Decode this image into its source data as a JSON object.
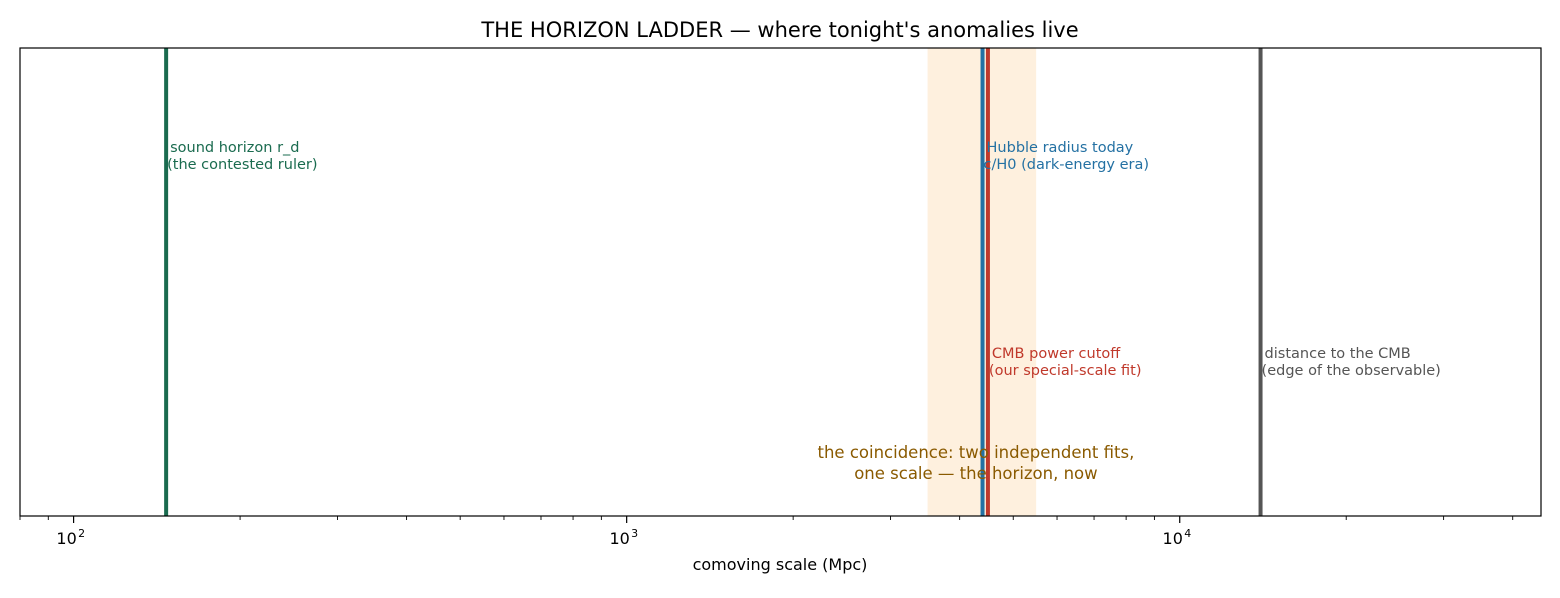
{
  "chart_data": {
    "type": "annotated-scale",
    "title": "THE HORIZON LADDER — where tonight's anomalies live",
    "xlabel": "comoving scale  (Mpc)",
    "ylabel": "",
    "xscale": "log",
    "xlim": [
      80,
      45000
    ],
    "x_ticks": [
      {
        "value": 100,
        "base": "10",
        "exp": "2"
      },
      {
        "value": 1000,
        "base": "10",
        "exp": "3"
      },
      {
        "value": 10000,
        "base": "10",
        "exp": "4"
      }
    ],
    "band": {
      "from": 3500,
      "to": 5500,
      "color": "#fdebd3"
    },
    "markers": [
      {
        "x": 147,
        "line1": "sound horizon r_d",
        "line2": "(the contested ruler)",
        "color": "#1a6b4f",
        "label_level": "upper"
      },
      {
        "x": 4400,
        "line1": "Hubble radius today",
        "line2": "c/H0 (dark-energy era)",
        "color": "#2471a3",
        "label_level": "upper"
      },
      {
        "x": 4500,
        "line1": "CMB power cutoff",
        "line2": "(our special-scale fit)",
        "color": "#c0392b",
        "label_level": "lower"
      },
      {
        "x": 14000,
        "line1": "distance to the CMB",
        "line2": "(edge of the observable)",
        "color": "#555555",
        "label_level": "lower"
      }
    ],
    "annotation": {
      "line1": "the coincidence: two independent fits,",
      "line2": "one scale — the horizon, now",
      "color": "#8a5a00"
    },
    "grid": false,
    "legend": "none"
  }
}
